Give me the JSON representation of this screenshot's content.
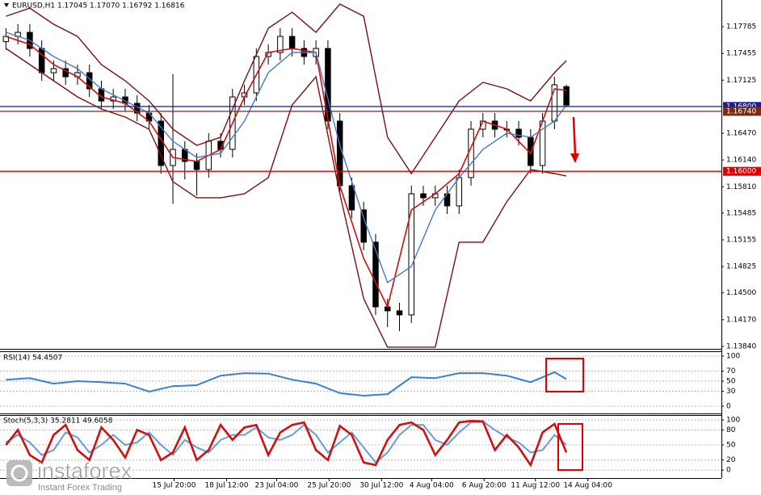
{
  "chart_data": [
    {
      "type": "candlestick",
      "title": "EURUSD,H1  1.17045 1.17070 1.16792 1.16816",
      "xlim": [
        -0.5,
        60
      ],
      "ylim": [
        1.1381,
        1.18114
      ],
      "yticks": [
        {
          "value": 1.17785,
          "label": "1.17785"
        },
        {
          "value": 1.17455,
          "label": "1.17455"
        },
        {
          "value": 1.17125,
          "label": "1.17125"
        },
        {
          "value": 1.1647,
          "label": "1.16470"
        },
        {
          "value": 1.1614,
          "label": "1.16140"
        },
        {
          "value": 1.1581,
          "label": "1.15810"
        },
        {
          "value": 1.15485,
          "label": "1.15485"
        },
        {
          "value": 1.15155,
          "label": "1.15155"
        },
        {
          "value": 1.14825,
          "label": "1.14825"
        },
        {
          "value": 1.145,
          "label": "1.14500"
        },
        {
          "value": 1.1417,
          "label": "1.14170"
        },
        {
          "value": 1.1384,
          "label": "1.13840"
        }
      ],
      "candle_color": "#000000",
      "open": [
        1.176,
        1.17665,
        1.17715,
        1.17516,
        1.17217,
        1.17267,
        1.17167,
        1.17217,
        1.17018,
        1.16868,
        1.16918,
        1.16839,
        1.16719,
        1.1662,
        1.16072,
        1.16271,
        1.16122,
        1.16022,
        1.16371,
        1.16271,
        1.16918,
        1.16968,
        1.17417,
        1.17466,
        1.17665,
        1.17516,
        1.17417,
        1.17516,
        1.1662,
        1.15823,
        1.15524,
        1.15126,
        1.14328,
        1.14279,
        1.14229,
        1.15723,
        1.15674,
        1.15723,
        1.15574,
        1.15923,
        1.1652,
        1.1662,
        1.1652,
        1.1652,
        1.1642,
        1.16072,
        1.1662,
        1.17045
      ],
      "high": [
        1.17765,
        1.17815,
        1.17815,
        1.17616,
        1.17367,
        1.17367,
        1.17317,
        1.17317,
        1.17118,
        1.17018,
        1.17018,
        1.16939,
        1.16819,
        1.1672,
        1.172,
        1.16371,
        1.16222,
        1.16471,
        1.16471,
        1.17018,
        1.17068,
        1.17517,
        1.17566,
        1.17765,
        1.17765,
        1.17616,
        1.17616,
        1.17616,
        1.1672,
        1.15923,
        1.15624,
        1.15226,
        1.14428,
        1.14379,
        1.15823,
        1.15823,
        1.15823,
        1.15823,
        1.16023,
        1.1662,
        1.1672,
        1.1672,
        1.1662,
        1.1662,
        1.1652,
        1.1672,
        1.17168,
        1.1707
      ],
      "low": [
        1.175,
        1.17565,
        1.17416,
        1.17117,
        1.17117,
        1.17067,
        1.17067,
        1.16918,
        1.16768,
        1.16768,
        1.16739,
        1.16619,
        1.1652,
        1.15972,
        1.156,
        1.159,
        1.157,
        1.15922,
        1.16171,
        1.16171,
        1.16818,
        1.16868,
        1.17317,
        1.17366,
        1.17416,
        1.17317,
        1.17317,
        1.1652,
        1.15723,
        1.15424,
        1.15026,
        1.14228,
        1.14079,
        1.14029,
        1.14129,
        1.15574,
        1.15574,
        1.15474,
        1.15474,
        1.15823,
        1.1642,
        1.1642,
        1.1642,
        1.1632,
        1.15972,
        1.15972,
        1.1652,
        1.16792
      ],
      "close": [
        1.17665,
        1.17715,
        1.17516,
        1.17217,
        1.17267,
        1.17167,
        1.17217,
        1.17018,
        1.16868,
        1.16918,
        1.16839,
        1.16719,
        1.1662,
        1.16072,
        1.16271,
        1.16122,
        1.16022,
        1.16371,
        1.16271,
        1.16918,
        1.16968,
        1.17417,
        1.17466,
        1.17665,
        1.17516,
        1.17417,
        1.17516,
        1.1662,
        1.15823,
        1.15524,
        1.15126,
        1.14328,
        1.14279,
        1.14229,
        1.15723,
        1.15674,
        1.15723,
        1.15574,
        1.15923,
        1.1652,
        1.1662,
        1.1652,
        1.1652,
        1.1642,
        1.16072,
        1.1662,
        1.17068,
        1.16816
      ],
      "overlay_x": [
        0,
        2,
        4,
        6,
        8,
        10,
        12,
        14,
        16,
        18,
        20,
        22,
        24,
        26,
        28,
        30,
        32,
        34,
        36,
        38,
        40,
        42,
        44,
        46,
        47
      ],
      "overlays": [
        {
          "color": "#7a1010",
          "values": [
            1.17914,
            1.18014,
            1.17815,
            1.17665,
            1.17317,
            1.17118,
            1.16869,
            1.1652,
            1.16321,
            1.16421,
            1.17118,
            1.17765,
            1.17964,
            1.17715,
            1.18064,
            1.17914,
            1.16421,
            1.15972,
            1.16421,
            1.16869,
            1.17098,
            1.17018,
            1.16869,
            1.17217,
            1.17367
          ]
        },
        {
          "color": "#7a1010",
          "values": [
            1.17516,
            1.17317,
            1.17118,
            1.16918,
            1.16769,
            1.16669,
            1.1652,
            1.15873,
            1.15674,
            1.15674,
            1.15723,
            1.15923,
            1.16819,
            1.17167,
            1.15723,
            1.14429,
            1.13831,
            1.13831,
            1.13831,
            1.15126,
            1.15126,
            1.15624,
            1.16022,
            1.15972,
            1.15943
          ]
        },
        {
          "color": "#d01010",
          "values": [
            1.17665,
            1.17566,
            1.17317,
            1.17167,
            1.16918,
            1.16839,
            1.1662,
            1.16171,
            1.16122,
            1.16271,
            1.16918,
            1.17466,
            1.17516,
            1.17466,
            1.15823,
            1.14926,
            1.14328,
            1.15524,
            1.15723,
            1.15972,
            1.1662,
            1.1652,
            1.16221,
            1.17018,
            1.16998
          ]
        },
        {
          "color": "#4a78c8",
          "values": [
            1.17715,
            1.17616,
            1.17417,
            1.17267,
            1.17018,
            1.16869,
            1.16719,
            1.16371,
            1.16171,
            1.16221,
            1.1662,
            1.17217,
            1.17466,
            1.17466,
            1.16321,
            1.15424,
            1.14628,
            1.14827,
            1.15524,
            1.15923,
            1.16271,
            1.1647,
            1.16421,
            1.1662,
            1.16819
          ]
        }
      ],
      "price_lines": [
        {
          "value": 1.168,
          "label": "1.16800",
          "color": "#1a1a9a"
        },
        {
          "value": 1.1674,
          "label": "1.16740",
          "color": "#7a2a10"
        },
        {
          "value": 1.16,
          "label": "1.16000",
          "color": "#e00000"
        }
      ]
    },
    {
      "type": "line",
      "title": "RSI(14) 54.4507",
      "xlim": [
        -0.5,
        60
      ],
      "ylim": [
        -14.5,
        109.7
      ],
      "yticks": [
        100,
        70,
        50,
        30,
        0
      ],
      "grid": true,
      "x": [
        0,
        2,
        4,
        6,
        8,
        10,
        12,
        14,
        16,
        18,
        20,
        22,
        24,
        26,
        28,
        30,
        32,
        34,
        36,
        38,
        40,
        42,
        44,
        46,
        47
      ],
      "series": [
        {
          "color": "#3a7fd0",
          "values": [
            53,
            56,
            45,
            50,
            48,
            45,
            29,
            40,
            42,
            61,
            66,
            65,
            53,
            45,
            26,
            21,
            24,
            58,
            56,
            66,
            66,
            61,
            48,
            68,
            54
          ]
        }
      ]
    },
    {
      "type": "line",
      "title": "Stoch(5,3,3) 35.2811 49.6058",
      "xlim": [
        -0.5,
        60
      ],
      "ylim": [
        -16,
        109.7
      ],
      "yticks": [
        100,
        80,
        50,
        20,
        0
      ],
      "grid": true,
      "x": [
        0,
        1,
        2,
        3,
        4,
        5,
        6,
        7,
        8,
        9,
        10,
        11,
        12,
        13,
        14,
        15,
        16,
        17,
        18,
        19,
        20,
        21,
        22,
        23,
        24,
        25,
        26,
        27,
        28,
        29,
        30,
        31,
        32,
        33,
        34,
        35,
        36,
        37,
        38,
        39,
        40,
        41,
        42,
        43,
        44,
        45,
        46,
        47
      ],
      "series": [
        {
          "color": "#6a9be0",
          "values": [
            55,
            70,
            55,
            30,
            40,
            75,
            65,
            35,
            50,
            70,
            50,
            55,
            75,
            50,
            30,
            60,
            45,
            35,
            60,
            70,
            70,
            85,
            65,
            60,
            70,
            90,
            70,
            35,
            55,
            75,
            45,
            15,
            35,
            70,
            90,
            90,
            60,
            50,
            75,
            95,
            97,
            80,
            65,
            55,
            35,
            40,
            70,
            50
          ]
        },
        {
          "color": "#d01010",
          "values": [
            50,
            80,
            30,
            15,
            70,
            90,
            40,
            20,
            85,
            60,
            25,
            80,
            70,
            20,
            35,
            85,
            20,
            40,
            90,
            60,
            85,
            90,
            30,
            75,
            90,
            95,
            40,
            20,
            88,
            70,
            15,
            10,
            60,
            90,
            95,
            80,
            30,
            60,
            95,
            98,
            97,
            40,
            70,
            45,
            10,
            75,
            92,
            35
          ]
        }
      ],
      "xticks": [
        {
          "value": 14.1,
          "label": "15 Jul 20:00"
        },
        {
          "value": 18.5,
          "label": "18 Jul 12:00"
        },
        {
          "value": 22.7,
          "label": "23 Jul 04:00"
        },
        {
          "value": 27.1,
          "label": "25 Jul 20:00"
        },
        {
          "value": 31.5,
          "label": "30 Jul 12:00"
        },
        {
          "value": 35.7,
          "label": "4 Aug 04:00"
        },
        {
          "value": 40.1,
          "label": "6 Aug 20:00"
        },
        {
          "value": 44.4,
          "label": "11 Aug 12:00"
        },
        {
          "value": 48.8,
          "label": "14 Aug 04:00"
        }
      ]
    }
  ],
  "watermark": {
    "brand": "instaforex",
    "tagline": "Instant Forex Trading"
  }
}
